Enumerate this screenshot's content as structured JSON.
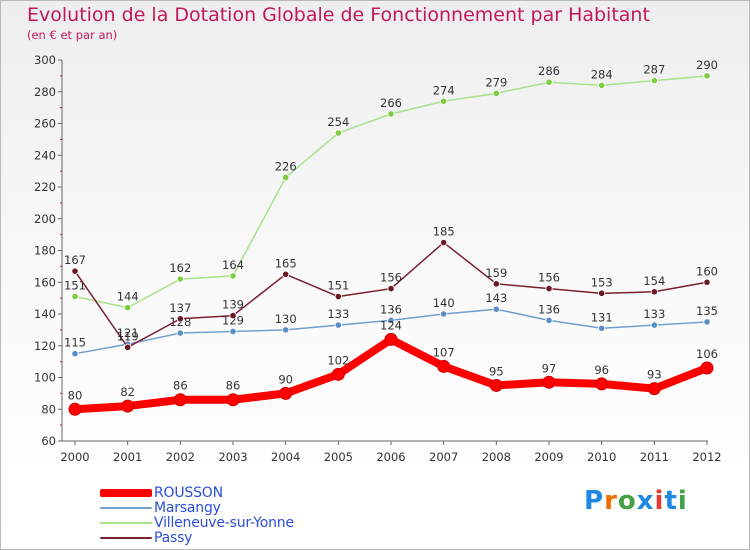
{
  "header": {
    "title": "Evolution de la Dotation Globale de Fonctionnement par Habitant",
    "subtitle": "(en € et par an)"
  },
  "logo": {
    "text": "Proxiti",
    "colors": [
      "#1e88e5",
      "#ef6c00",
      "#43a047",
      "#1e88e5",
      "#e53935",
      "#1e88e5",
      "#43a047"
    ]
  },
  "chart_data": {
    "type": "line",
    "title": "Evolution de la Dotation Globale de Fonctionnement par Habitant",
    "subtitle": "(en € et par an)",
    "xlabel": "",
    "ylabel": "",
    "categories": [
      "2000",
      "2001",
      "2002",
      "2003",
      "2004",
      "2005",
      "2006",
      "2007",
      "2008",
      "2009",
      "2010",
      "2011",
      "2012"
    ],
    "ylim": [
      60,
      300
    ],
    "yticks": [
      60,
      80,
      100,
      120,
      140,
      160,
      180,
      200,
      220,
      240,
      260,
      280,
      300
    ],
    "grid": false,
    "legend_position": "bottom-left",
    "series": [
      {
        "name": "ROUSSON",
        "color": "#ff0000",
        "marker_color": "#ff0000",
        "emphasis": "thick",
        "values": [
          80,
          82,
          86,
          86,
          90,
          102,
          124,
          107,
          95,
          97,
          96,
          93,
          106
        ]
      },
      {
        "name": "Marsangy",
        "color": "#6f9fcf",
        "marker_color": "#5b8dc7",
        "emphasis": "thin",
        "values": [
          115,
          121,
          128,
          129,
          130,
          133,
          136,
          140,
          143,
          136,
          131,
          133,
          135
        ]
      },
      {
        "name": "Villeneuve-sur-Yonne",
        "color": "#a8e28a",
        "marker_color": "#7ccd3f",
        "emphasis": "thin",
        "values": [
          151,
          144,
          162,
          164,
          226,
          254,
          266,
          274,
          279,
          286,
          284,
          287,
          290
        ]
      },
      {
        "name": "Passy",
        "color": "#7a2030",
        "marker_color": "#6b1a25",
        "emphasis": "thin",
        "values": [
          167,
          119,
          137,
          139,
          165,
          151,
          156,
          185,
          159,
          156,
          153,
          154,
          160
        ]
      }
    ]
  }
}
